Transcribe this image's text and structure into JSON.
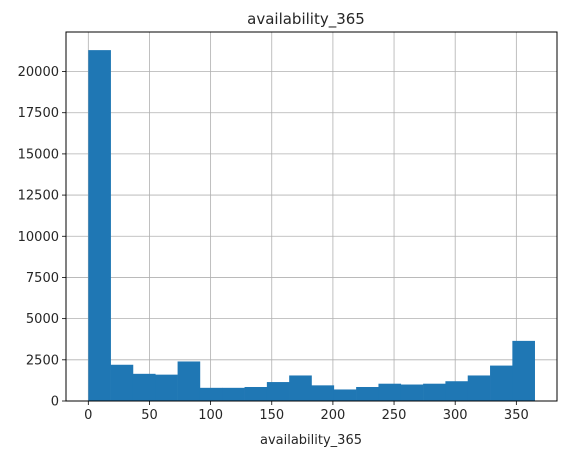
{
  "chart_data": {
    "type": "bar",
    "title": "availability_365",
    "xlabel": "availability_365",
    "ylabel": "",
    "grid": true,
    "xlim": [
      -18.25,
      383.25
    ],
    "ylim": [
      0,
      22400
    ],
    "bar_color": "#1f77b4",
    "x_ticks": [
      0,
      50,
      100,
      150,
      200,
      250,
      300,
      350
    ],
    "y_ticks": [
      0,
      2500,
      5000,
      7500,
      10000,
      12500,
      15000,
      17500,
      20000
    ],
    "bin_width": 18.25,
    "bin_starts": [
      0,
      18.25,
      36.5,
      54.75,
      73,
      91.25,
      109.5,
      127.75,
      146,
      164.25,
      182.5,
      200.75,
      219,
      237.25,
      255.5,
      273.75,
      292,
      310.25,
      328.5,
      346.75
    ],
    "values": [
      21300,
      2200,
      1650,
      1600,
      2400,
      800,
      800,
      850,
      1150,
      1550,
      950,
      700,
      850,
      1050,
      1000,
      1050,
      1200,
      1550,
      2150,
      3650
    ]
  }
}
